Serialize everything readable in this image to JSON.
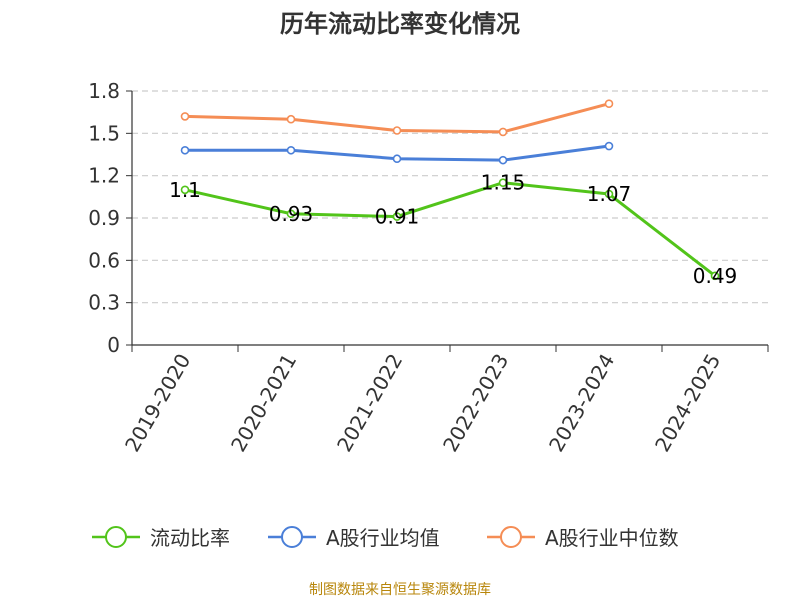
{
  "title": "历年流动比率变化情况",
  "source": "制图数据来自恒生聚源数据库",
  "chart_data": {
    "type": "line",
    "categories": [
      "2019-2020",
      "2020-2021",
      "2021-2022",
      "2022-2023",
      "2023-2024",
      "2024-2025"
    ],
    "ylim": [
      0,
      1.8
    ],
    "yticks": [
      "0",
      "0.3",
      "0.6",
      "0.9",
      "1.2",
      "1.5",
      "1.8"
    ],
    "grid": true,
    "legend_position": "bottom",
    "series": [
      {
        "name": "流动比率",
        "color": "#52c41a",
        "values": [
          1.1,
          0.93,
          0.91,
          1.15,
          1.07,
          0.49
        ],
        "labels": [
          "1.1",
          "0.93",
          "0.91",
          "1.15",
          "1.07",
          "0.49"
        ]
      },
      {
        "name": "A股行业均值",
        "color": "#4a7fd8",
        "values": [
          1.38,
          1.38,
          1.32,
          1.31,
          1.41,
          null
        ]
      },
      {
        "name": "A股行业中位数",
        "color": "#f58d55",
        "values": [
          1.62,
          1.6,
          1.52,
          1.51,
          1.71,
          null
        ]
      }
    ]
  }
}
